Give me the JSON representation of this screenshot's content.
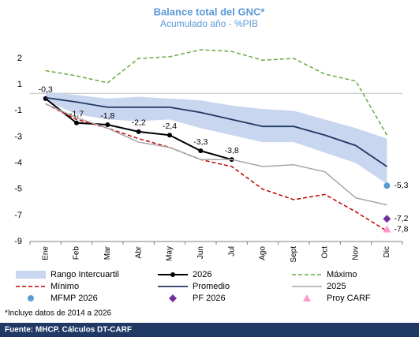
{
  "chart_data": {
    "type": "line",
    "title": "Balance total del GNC*",
    "subtitle": "Acumulado año - %PIB",
    "categories": [
      "Ene",
      "Feb",
      "Mar",
      "Abr",
      "May",
      "Jun",
      "Jul",
      "Ago",
      "Sept",
      "Oct",
      "Nov",
      "Dic"
    ],
    "ylim": [
      -8.5,
      2.5
    ],
    "yticks": [
      2,
      {
        "value": 0.5,
        "label": "1"
      },
      -1,
      {
        "value": -2.5,
        "label": "-3"
      },
      -4,
      {
        "value": -5.5,
        "label": "-5"
      },
      -7,
      {
        "value": -8.5,
        "label": "-9"
      }
    ],
    "band": {
      "name": "Rango Intercuartil",
      "color": "#c9d6ef",
      "high": [
        0.1,
        -0.1,
        -0.3,
        -0.2,
        -0.3,
        -0.4,
        -0.7,
        -0.9,
        -1.0,
        -1.5,
        -2.0,
        -2.6
      ],
      "low": [
        -0.4,
        -1.2,
        -1.5,
        -1.6,
        -1.5,
        -2.0,
        -2.4,
        -2.8,
        -2.8,
        -3.4,
        -4.0,
        -5.2
      ]
    },
    "series": [
      {
        "name": "2026",
        "color": "#000000",
        "dash": false,
        "marker": "circle",
        "width": 2,
        "values": [
          -0.3,
          -1.7,
          -1.8,
          -2.2,
          -2.4,
          -3.3,
          -3.8,
          null,
          null,
          null,
          null,
          null
        ],
        "value_labels": [
          "-0,3",
          "-1,7",
          "-1,8",
          "-2,2",
          "-2,4",
          "-3,3",
          "-3,8",
          null,
          null,
          null,
          null,
          null
        ]
      },
      {
        "name": "Máximo",
        "color": "#6aaa45",
        "dash": true,
        "marker": null,
        "width": 1.5,
        "values": [
          1.3,
          1.0,
          0.6,
          2.0,
          2.1,
          2.5,
          2.4,
          1.9,
          2.0,
          1.1,
          0.7,
          -2.4
        ]
      },
      {
        "name": "Mínimo",
        "color": "#c00000",
        "dash": true,
        "marker": null,
        "width": 1.5,
        "values": [
          -0.6,
          -1.5,
          -2.0,
          -2.6,
          -3.1,
          -3.8,
          -4.2,
          -5.5,
          -6.1,
          -5.8,
          -6.8,
          -7.9
        ]
      },
      {
        "name": "Promedio",
        "color": "#1f3864",
        "dash": false,
        "marker": null,
        "width": 1.8,
        "values": [
          -0.25,
          -0.5,
          -0.8,
          -0.8,
          -0.8,
          -1.1,
          -1.5,
          -1.9,
          -1.9,
          -2.4,
          -3.0,
          -4.2
        ]
      },
      {
        "name": "2025",
        "color": "#a6a6a6",
        "dash": false,
        "marker": null,
        "width": 1.5,
        "values": [
          -0.6,
          -1.4,
          -2.0,
          -2.8,
          -3.1,
          -3.8,
          -3.8,
          -4.2,
          -4.1,
          -4.5,
          -6.0,
          -6.4
        ]
      },
      {
        "name": "MFMP 2026",
        "color": "#5b9bd5",
        "dash": false,
        "marker": "circle",
        "width": 0,
        "values": [
          null,
          null,
          null,
          null,
          null,
          null,
          null,
          null,
          null,
          null,
          null,
          -5.3
        ],
        "value_labels": [
          null,
          null,
          null,
          null,
          null,
          null,
          null,
          null,
          null,
          null,
          null,
          "-5,3"
        ]
      },
      {
        "name": "PF 2026",
        "color": "#7030a0",
        "dash": false,
        "marker": "diamond",
        "width": 0,
        "values": [
          null,
          null,
          null,
          null,
          null,
          null,
          null,
          null,
          null,
          null,
          null,
          -7.2
        ],
        "value_labels": [
          null,
          null,
          null,
          null,
          null,
          null,
          null,
          null,
          null,
          null,
          null,
          "-7,2"
        ]
      },
      {
        "name": "Proy CARF",
        "color": "#ff99cc",
        "dash": false,
        "marker": "triangle",
        "width": 0,
        "values": [
          null,
          null,
          null,
          null,
          null,
          null,
          null,
          null,
          null,
          null,
          null,
          -7.8
        ],
        "value_labels": [
          null,
          null,
          null,
          null,
          null,
          null,
          null,
          null,
          null,
          null,
          null,
          "-7,8"
        ]
      }
    ],
    "footnote": "*Incluye datos de 2014 a 2026",
    "source": "Fuente: MHCP. Cálculos DT-CARF"
  }
}
